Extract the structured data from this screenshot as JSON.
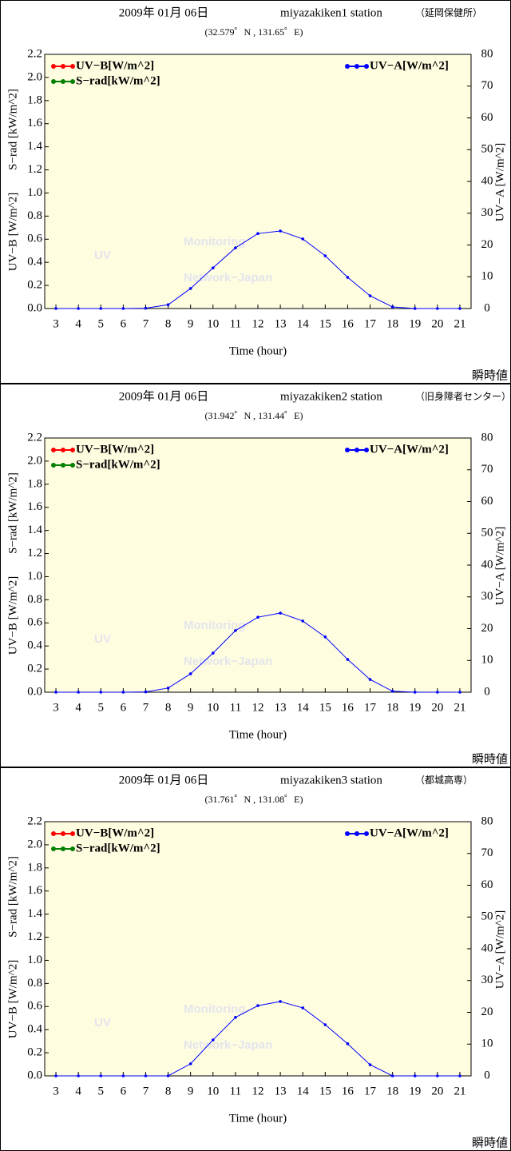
{
  "chart_data": [
    {
      "type": "line",
      "title": "2009年 01月 06日",
      "station": "miyazakiken1 station",
      "location": "（延岡保健所）",
      "coords": "(32.579゜N , 131.65゜E)",
      "x": [
        3,
        4,
        5,
        6,
        7,
        8,
        9,
        10,
        11,
        12,
        13,
        14,
        15,
        16,
        17,
        18,
        19,
        20,
        21
      ],
      "xlim": [
        2.5,
        21.5
      ],
      "xticks": [
        3,
        4,
        5,
        6,
        7,
        8,
        9,
        10,
        11,
        12,
        13,
        14,
        15,
        16,
        17,
        18,
        19,
        20,
        21
      ],
      "xlabel": "Time (hour)",
      "ylim": [
        0,
        2.2
      ],
      "yticks": [
        {
          "value": 0,
          "label": "0.0"
        },
        0.2,
        0.4,
        0.6,
        0.8,
        {
          "value": 1,
          "label": "1.0"
        },
        1.2,
        1.4,
        1.6,
        1.8,
        {
          "value": 2,
          "label": "2.0"
        },
        2.2
      ],
      "y2lim": [
        0,
        80
      ],
      "y2ticks": [
        0,
        10,
        20,
        30,
        40,
        50,
        60,
        70,
        80
      ],
      "ylabels": [
        "UV−B [W/m^2]",
        "S−rad [kW/m^2]"
      ],
      "y2label": "UV−A [W/m^2]",
      "series": [
        {
          "name": "UV−B[W/m^2]",
          "color": "#ff0000",
          "values": [
            null,
            null,
            null,
            null,
            null,
            null,
            null,
            null,
            null,
            null,
            null,
            null,
            null,
            null,
            null,
            null,
            null,
            null,
            null
          ]
        },
        {
          "name": "S−rad[kW/m^2]",
          "color": "#008000",
          "values": [
            null,
            null,
            null,
            null,
            null,
            null,
            null,
            null,
            null,
            null,
            null,
            null,
            null,
            null,
            null,
            null,
            null,
            null,
            null
          ]
        },
        {
          "name": "UV−A[W/m^2]",
          "color": "#0000ff",
          "axis": "y2",
          "values": [
            0,
            0,
            0,
            0,
            0.1,
            1.2,
            6.3,
            12.8,
            19.1,
            23.6,
            24.4,
            21.9,
            16.6,
            9.8,
            4.0,
            0.5,
            0,
            0,
            0
          ]
        }
      ],
      "watermark": [
        "UV",
        "Monitoring",
        "Network−Japan"
      ],
      "note": "瞬時値"
    },
    {
      "type": "line",
      "title": "2009年 01月 06日",
      "station": "miyazakiken2 station",
      "location": "（旧身障者センター）",
      "coords": "(31.942゜N , 131.44゜E)",
      "x": [
        3,
        4,
        5,
        6,
        7,
        8,
        9,
        10,
        11,
        12,
        13,
        14,
        15,
        16,
        17,
        18,
        19,
        20,
        21
      ],
      "xlim": [
        2.5,
        21.5
      ],
      "xticks": [
        3,
        4,
        5,
        6,
        7,
        8,
        9,
        10,
        11,
        12,
        13,
        14,
        15,
        16,
        17,
        18,
        19,
        20,
        21
      ],
      "xlabel": "Time (hour)",
      "ylim": [
        0,
        2.2
      ],
      "yticks": [
        {
          "value": 0,
          "label": "0.0"
        },
        0.2,
        0.4,
        0.6,
        0.8,
        {
          "value": 1,
          "label": "1.0"
        },
        1.2,
        1.4,
        1.6,
        1.8,
        {
          "value": 2,
          "label": "2.0"
        },
        2.2
      ],
      "y2lim": [
        0,
        80
      ],
      "y2ticks": [
        0,
        10,
        20,
        30,
        40,
        50,
        60,
        70,
        80
      ],
      "ylabels": [
        "UV−B [W/m^2]",
        "S−rad [kW/m^2]"
      ],
      "y2label": "UV−A [W/m^2]",
      "series": [
        {
          "name": "UV−B[W/m^2]",
          "color": "#ff0000",
          "values": [
            null,
            null,
            null,
            null,
            null,
            null,
            null,
            null,
            null,
            null,
            null,
            null,
            null,
            null,
            null,
            null,
            null,
            null,
            null
          ]
        },
        {
          "name": "S−rad[kW/m^2]",
          "color": "#008000",
          "values": [
            null,
            null,
            null,
            null,
            null,
            null,
            null,
            null,
            null,
            null,
            null,
            null,
            null,
            null,
            null,
            null,
            null,
            null,
            null
          ]
        },
        {
          "name": "UV−A[W/m^2]",
          "color": "#0000ff",
          "axis": "y2",
          "values": [
            0,
            0,
            0,
            0,
            0.1,
            1.3,
            5.8,
            12.3,
            19.4,
            23.6,
            24.9,
            22.4,
            17.4,
            10.3,
            4.0,
            0.3,
            0,
            0,
            0
          ]
        }
      ],
      "watermark": [
        "UV",
        "Monitoring",
        "Network−Japan"
      ],
      "note": "瞬時値"
    },
    {
      "type": "line",
      "title": "2009年 01月 06日",
      "station": "miyazakiken3 station",
      "location": "（都城高専）",
      "coords": "(31.761゜N , 131.08゜E)",
      "x": [
        3,
        4,
        5,
        6,
        7,
        8,
        9,
        10,
        11,
        12,
        13,
        14,
        15,
        16,
        17,
        18,
        19,
        20,
        21
      ],
      "xlim": [
        2.5,
        21.5
      ],
      "xticks": [
        3,
        4,
        5,
        6,
        7,
        8,
        9,
        10,
        11,
        12,
        13,
        14,
        15,
        16,
        17,
        18,
        19,
        20,
        21
      ],
      "xlabel": "Time (hour)",
      "ylim": [
        0,
        2.2
      ],
      "yticks": [
        {
          "value": 0,
          "label": "0.0"
        },
        0.2,
        0.4,
        0.6,
        0.8,
        {
          "value": 1,
          "label": "1.0"
        },
        1.2,
        1.4,
        1.6,
        1.8,
        {
          "value": 2,
          "label": "2.0"
        },
        2.2
      ],
      "y2lim": [
        0,
        80
      ],
      "y2ticks": [
        0,
        10,
        20,
        30,
        40,
        50,
        60,
        70,
        80
      ],
      "ylabels": [
        "UV−B [W/m^2]",
        "S−rad [kW/m^2]"
      ],
      "y2label": "UV−A [W/m^2]",
      "series": [
        {
          "name": "UV−B[W/m^2]",
          "color": "#ff0000",
          "values": [
            null,
            null,
            null,
            null,
            null,
            null,
            null,
            null,
            null,
            null,
            null,
            null,
            null,
            null,
            null,
            null,
            null,
            null,
            null
          ]
        },
        {
          "name": "S−rad[kW/m^2]",
          "color": "#008000",
          "values": [
            null,
            null,
            null,
            null,
            null,
            null,
            null,
            null,
            null,
            null,
            null,
            null,
            null,
            null,
            null,
            null,
            null,
            null,
            null
          ]
        },
        {
          "name": "UV−A[W/m^2]",
          "color": "#0000ff",
          "axis": "y2",
          "values": [
            0,
            0,
            0,
            0,
            0,
            0,
            3.8,
            11.3,
            18.4,
            22.1,
            23.4,
            21.4,
            16.1,
            10.1,
            3.5,
            0,
            0,
            0,
            0
          ]
        }
      ],
      "watermark": [
        "UV",
        "Monitoring",
        "Network−Japan"
      ],
      "note": "瞬時値"
    }
  ]
}
